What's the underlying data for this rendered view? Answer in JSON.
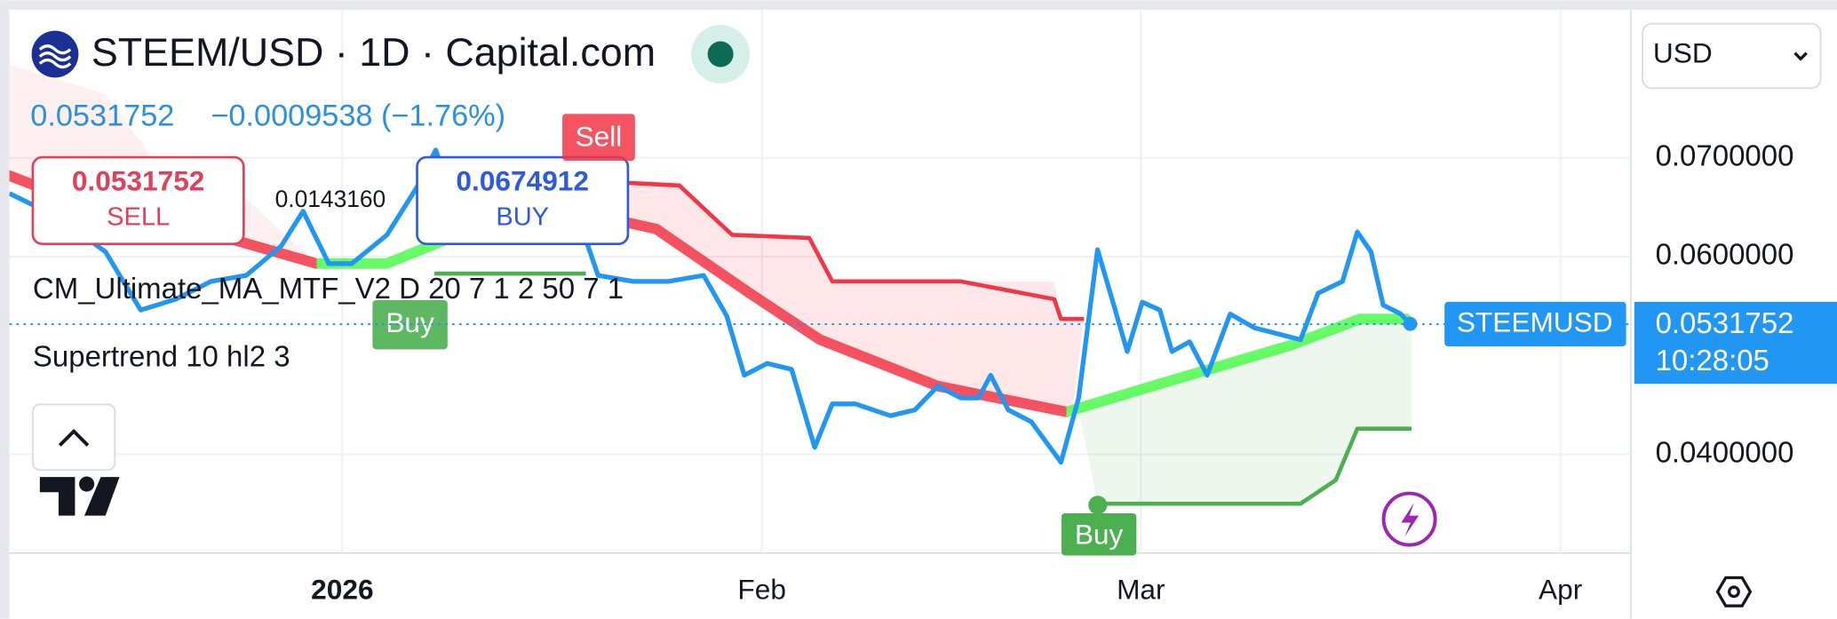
{
  "header": {
    "title": "STEEM/USD · 1D · Capital.com",
    "currency": "USD"
  },
  "quote": {
    "change": "−0.0009538 (−1.76%)"
  },
  "trade": {
    "sell": {
      "price": 0.0531752,
      "label": "SELL"
    },
    "buy": {
      "price": 0.0674912,
      "label": "BUY"
    },
    "spread": "0.0143160"
  },
  "signals": [
    "Sell",
    "Buy",
    "Buy"
  ],
  "chart_data": {
    "type": "line",
    "series": [
      {
        "name": "STEEMUSD",
        "color": "#2196f3",
        "x": [
          -24.6,
          -21.0,
          -17.5,
          -14.9,
          -12.3,
          -9.7,
          -7.1,
          -4.5,
          -2.9,
          -1.0,
          0.7,
          3.3,
          5.5,
          6.9,
          8.5,
          11.1,
          13.7,
          16.3,
          18.0,
          18.9,
          21.5,
          24.1,
          26.7,
          28.4,
          29.7,
          31.4,
          33.2,
          34.9,
          36.2,
          37.9,
          39.2,
          40.5,
          42.3,
          44.0,
          45.7,
          47.0,
          47.9,
          49.2,
          50.9,
          53.1,
          54.4,
          55.8,
          57.0,
          58.0,
          59.1,
          60.4,
          61.3,
          62.6,
          63.9,
          65.6,
          67.4,
          69.1,
          70.8,
          72.1,
          73.9,
          75.0,
          76.0,
          76.9,
          78.2,
          78.9
        ],
        "values": [
          0.0664,
          0.064,
          0.0605,
          0.0546,
          0.0557,
          0.0575,
          0.0581,
          0.0611,
          0.0646,
          0.0593,
          0.0593,
          0.0622,
          0.067,
          0.0708,
          0.0646,
          0.064,
          0.0646,
          0.0634,
          0.0617,
          0.0581,
          0.0575,
          0.0575,
          0.0581,
          0.054,
          0.048,
          0.0492,
          0.0486,
          0.0407,
          0.0451,
          0.0451,
          0.0445,
          0.0439,
          0.0445,
          0.0469,
          0.0457,
          0.0457,
          0.048,
          0.0445,
          0.0433,
          0.0392,
          0.0457,
          0.0607,
          0.0551,
          0.0504,
          0.0554,
          0.0546,
          0.0504,
          0.0514,
          0.048,
          0.0542,
          0.0528,
          0.0522,
          0.0516,
          0.0563,
          0.0575,
          0.0625,
          0.0605,
          0.0551,
          0.0542,
          0.0532
        ]
      },
      {
        "name": "CM_Ultimate_MA_MTF_V2 D 20 7 1 2 50 7 1",
        "color": "#f23645",
        "color_up": "#4cfa4c",
        "x": [
          -24.6,
          -16.6,
          -8.0,
          -1.9,
          3.3,
          7.6,
          16.3,
          23.2,
          30.1,
          35.3,
          44.0,
          53.5,
          61.3,
          70.0,
          75.2,
          78.6
        ],
        "values": [
          0.0682,
          0.064,
          0.0617,
          0.0593,
          0.0593,
          0.0617,
          0.0649,
          0.0628,
          0.0563,
          0.0516,
          0.0469,
          0.0443,
          0.0475,
          0.051,
          0.0537,
          0.0537
        ]
      },
      {
        "name": "Supertrend 10 hl2 3",
        "color": "#f23645",
        "x": [
          16.3,
          24.9,
          28.8,
          34.5,
          36.2,
          45.7,
          52.6,
          53.1,
          54.8
        ],
        "values": [
          0.0678,
          0.0672,
          0.0622,
          0.0619,
          0.0575,
          0.0575,
          0.0557,
          0.0537,
          0.0537
        ]
      },
      {
        "color": "#4caf50",
        "x": [
          6.8,
          18.0,
          36.0,
          55.8,
          70.8,
          73.4,
          75.0,
          79.0
        ],
        "values": [
          0.0583,
          0.0583,
          null,
          0.035,
          0.035,
          0.0374,
          0.0426,
          0.0426
        ]
      }
    ],
    "xlim": [
      -24.6,
      95.2
    ],
    "xticks": [
      {
        "value": 0,
        "label": "2026"
      },
      {
        "value": 31,
        "label": "Feb"
      },
      {
        "value": 59,
        "label": "Mar"
      },
      {
        "value": 90,
        "label": "Apr"
      }
    ],
    "ylim": [
      0.03,
      0.085
    ],
    "yticks": [
      {
        "value": 0.04,
        "label": "0.0400000"
      },
      {
        "value": 0.06,
        "label": "0.0600000"
      },
      {
        "value": 0.07,
        "label": "0.0700000"
      }
    ],
    "grid": true,
    "last_price": 0.0531752,
    "countdown": "10:28:05"
  }
}
